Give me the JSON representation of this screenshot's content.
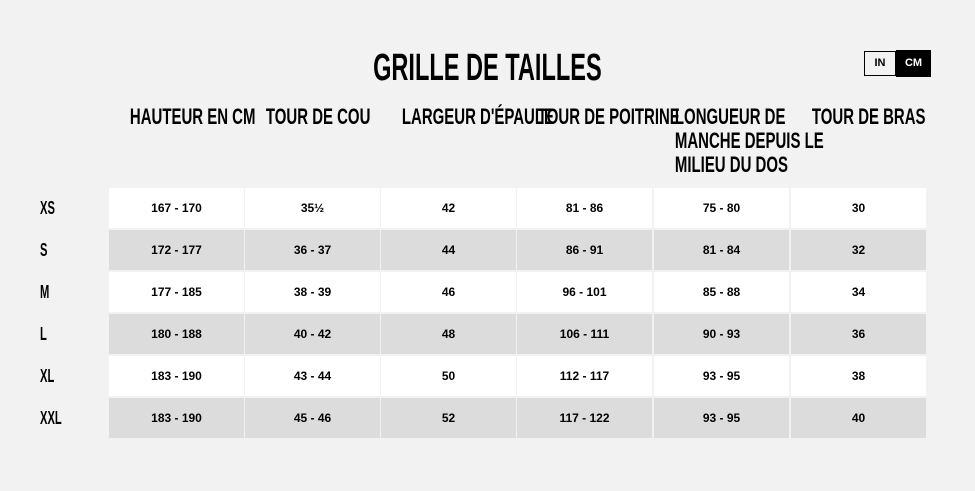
{
  "title": "GRILLE DE TAILLES",
  "unit_toggle": {
    "options": [
      "IN",
      "CM"
    ],
    "selected": "CM"
  },
  "columns": [
    "HAUTEUR EN CM",
    "TOUR DE COU",
    "LARGEUR D'ÉPAULE",
    "TOUR DE POITRINE",
    "LONGUEUR DE MANCHE DEPUIS LE MILIEU DU DOS",
    "TOUR DE BRAS"
  ],
  "column_lines": [
    [
      "HAUTEUR EN CM"
    ],
    [
      "TOUR DE COU"
    ],
    [
      "LARGEUR D'ÉPAULE"
    ],
    [
      "TOUR DE POITRINE"
    ],
    [
      "LONGUEUR DE",
      "MANCHE DEPUIS LE",
      "MILIEU DU DOS"
    ],
    [
      "TOUR DE BRAS"
    ]
  ],
  "rows": [
    {
      "size": "XS",
      "values": [
        "167 - 170",
        "35½",
        "42",
        "81 - 86",
        "75 - 80",
        "30"
      ]
    },
    {
      "size": "S",
      "values": [
        "172 - 177",
        "36 - 37",
        "44",
        "86 - 91",
        "81 - 84",
        "32"
      ]
    },
    {
      "size": "M",
      "values": [
        "177 - 185",
        "38 - 39",
        "46",
        "96 - 101",
        "85 - 88",
        "34"
      ]
    },
    {
      "size": "L",
      "values": [
        "180 - 188",
        "40 - 42",
        "48",
        "106 - 111",
        "90 - 93",
        "36"
      ]
    },
    {
      "size": "XL",
      "values": [
        "183 - 190",
        "43 - 44",
        "50",
        "112 - 117",
        "93 - 95",
        "38"
      ]
    },
    {
      "size": "XXL",
      "values": [
        "183 - 190",
        "45 - 46",
        "52",
        "117 - 122",
        "93 - 95",
        "40"
      ]
    }
  ]
}
